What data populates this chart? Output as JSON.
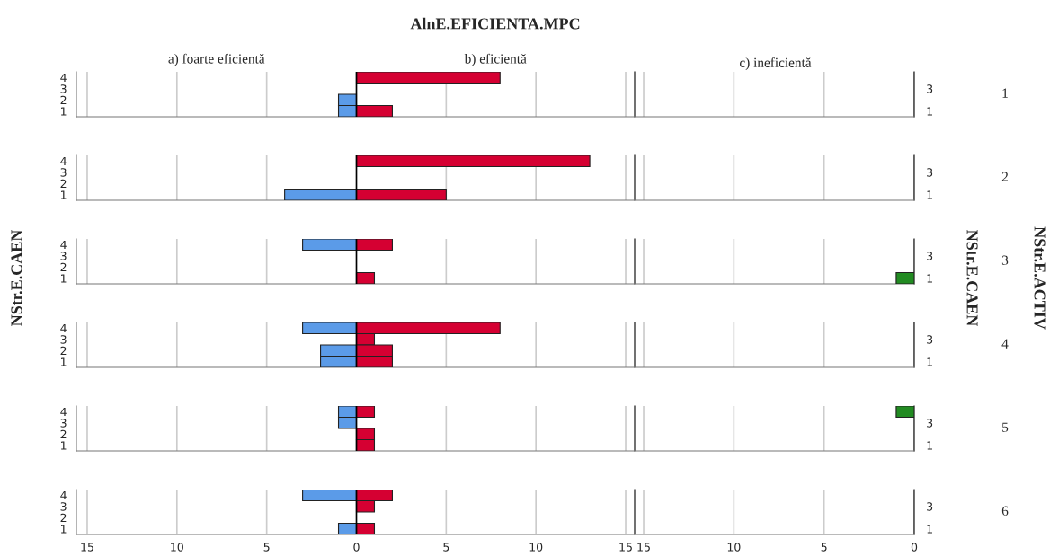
{
  "chart_data": [
    {
      "type": "bar",
      "orientation": "horizontal",
      "stacked": true,
      "title": "AlnE.EFICIENTA.MPC",
      "annotations": [
        "a) foarte eficientă",
        "b) eficientă"
      ],
      "categories": [
        "4",
        "3",
        "2",
        "1"
      ],
      "series": [
        {
          "color": "#5b9be8",
          "values": [
            null,
            null,
            -1,
            -1
          ]
        },
        {
          "color": "#d50032",
          "values": [
            8,
            null,
            null,
            2
          ]
        }
      ],
      "xlim": [
        -15.6,
        15.5
      ],
      "xticks": [
        {
          "value": -15,
          "label": null
        },
        {
          "value": -10,
          "label": null
        },
        {
          "value": -5,
          "label": null
        },
        0,
        5,
        10,
        15
      ],
      "ref_lines": [
        {
          "axis": "x",
          "value": 0,
          "color": "#000000"
        }
      ],
      "grid": "x",
      "tick_labels": "y"
    },
    {
      "type": "bar",
      "orientation": "horizontal",
      "subtitle": "c) ineficientă",
      "annotations": [
        "1"
      ],
      "categories": [
        null,
        "3",
        null,
        "1"
      ],
      "values": [
        null,
        null,
        null,
        null
      ],
      "xlim": [
        15.4,
        0
      ],
      "xticks": [
        15,
        10,
        5,
        0
      ],
      "grid": "x",
      "tick_labels": "y"
    },
    {
      "type": "bar",
      "orientation": "horizontal",
      "stacked": true,
      "categories": [
        "4",
        "3",
        "2",
        "1"
      ],
      "series": [
        {
          "color": "#5b9be8",
          "values": [
            null,
            null,
            null,
            -4
          ]
        },
        {
          "color": "#d50032",
          "values": [
            13,
            null,
            null,
            5
          ]
        }
      ],
      "xlim": [
        -15.6,
        15.5
      ],
      "xticks": [
        {
          "value": -15,
          "label": null
        },
        {
          "value": -10,
          "label": null
        },
        {
          "value": -5,
          "label": null
        },
        0,
        5,
        10,
        15
      ],
      "ref_lines": [
        {
          "axis": "x",
          "value": 0,
          "color": "#000000"
        }
      ],
      "grid": "x",
      "tick_labels": "y"
    },
    {
      "type": "bar",
      "orientation": "horizontal",
      "annotations": [
        "2"
      ],
      "categories": [
        null,
        "3",
        null,
        "1"
      ],
      "values": [
        null,
        null,
        null,
        null
      ],
      "xlim": [
        15.4,
        0
      ],
      "xticks": [
        15,
        10,
        5,
        0
      ],
      "grid": "x",
      "tick_labels": "y"
    },
    {
      "type": "bar",
      "orientation": "horizontal",
      "stacked": true,
      "ylabel": "NStr.E.CAEN",
      "categories": [
        "4",
        "3",
        "2",
        "1"
      ],
      "series": [
        {
          "color": "#5b9be8",
          "values": [
            -3,
            null,
            null,
            null
          ]
        },
        {
          "color": "#d50032",
          "values": [
            2,
            null,
            null,
            1
          ]
        }
      ],
      "xlim": [
        -15.6,
        15.5
      ],
      "xticks": [
        {
          "value": -15,
          "label": null
        },
        {
          "value": -10,
          "label": null
        },
        {
          "value": -5,
          "label": null
        },
        0,
        5,
        10,
        15
      ],
      "ref_lines": [
        {
          "axis": "x",
          "value": 0,
          "color": "#000000"
        }
      ],
      "grid": "x",
      "tick_labels": "y"
    },
    {
      "type": "bar",
      "orientation": "horizontal",
      "y2label": "NStr.E.CAEN",
      "annotations": [
        "3",
        "NStr.E.ACTIV"
      ],
      "categories": [
        null,
        "3",
        null,
        "1"
      ],
      "values": [
        null,
        null,
        null,
        1
      ],
      "color": "#228b22",
      "xlim": [
        15.4,
        0
      ],
      "xticks": [
        15,
        10,
        5,
        0
      ],
      "grid": "x",
      "tick_labels": "y"
    },
    {
      "type": "bar",
      "orientation": "horizontal",
      "stacked": true,
      "categories": [
        "4",
        "3",
        "2",
        "1"
      ],
      "series": [
        {
          "color": "#5b9be8",
          "values": [
            -3,
            null,
            -2,
            -2
          ]
        },
        {
          "color": "#d50032",
          "values": [
            8,
            1,
            2,
            2
          ]
        }
      ],
      "xlim": [
        -15.6,
        15.5
      ],
      "xticks": [
        {
          "value": -15,
          "label": null
        },
        {
          "value": -10,
          "label": null
        },
        {
          "value": -5,
          "label": null
        },
        0,
        5,
        10,
        15
      ],
      "ref_lines": [
        {
          "axis": "x",
          "value": 0,
          "color": "#000000"
        }
      ],
      "grid": "x",
      "tick_labels": "y"
    },
    {
      "type": "bar",
      "orientation": "horizontal",
      "annotations": [
        "4"
      ],
      "categories": [
        null,
        "3",
        null,
        "1"
      ],
      "values": [
        null,
        null,
        null,
        null
      ],
      "xlim": [
        15.4,
        0
      ],
      "xticks": [
        15,
        10,
        5,
        0
      ],
      "grid": "x",
      "tick_labels": "y"
    },
    {
      "type": "bar",
      "orientation": "horizontal",
      "stacked": true,
      "categories": [
        "4",
        "3",
        "2",
        "1"
      ],
      "series": [
        {
          "color": "#5b9be8",
          "values": [
            -1,
            -1,
            null,
            null
          ]
        },
        {
          "color": "#d50032",
          "values": [
            1,
            null,
            1,
            1
          ]
        }
      ],
      "xlim": [
        -15.6,
        15.5
      ],
      "xticks": [
        {
          "value": -15,
          "label": null
        },
        {
          "value": -10,
          "label": null
        },
        {
          "value": -5,
          "label": null
        },
        0,
        5,
        10,
        15
      ],
      "ref_lines": [
        {
          "axis": "x",
          "value": 0,
          "color": "#000000"
        }
      ],
      "grid": "x",
      "tick_labels": "y"
    },
    {
      "type": "bar",
      "orientation": "horizontal",
      "annotations": [
        "5"
      ],
      "categories": [
        null,
        "3",
        null,
        "1"
      ],
      "values": [
        1,
        null,
        null,
        null
      ],
      "color": "#228b22",
      "xlim": [
        15.4,
        0
      ],
      "xticks": [
        15,
        10,
        5,
        0
      ],
      "grid": "x",
      "tick_labels": "y"
    },
    {
      "type": "bar",
      "orientation": "horizontal",
      "stacked": true,
      "categories": [
        "4",
        "3",
        "2",
        "1"
      ],
      "series": [
        {
          "color": "#5b9be8",
          "values": [
            -3,
            null,
            null,
            -1
          ]
        },
        {
          "color": "#d50032",
          "values": [
            2,
            1,
            null,
            1
          ]
        }
      ],
      "xlim": [
        -15.6,
        15.5
      ],
      "xticks": [
        {
          "value": -15,
          "label": "15"
        },
        {
          "value": -10,
          "label": "10"
        },
        {
          "value": -5,
          "label": "5"
        },
        0,
        5,
        10,
        15
      ],
      "ref_lines": [
        {
          "axis": "x",
          "value": 0,
          "color": "#000000"
        }
      ],
      "grid": "x"
    },
    {
      "type": "bar",
      "orientation": "horizontal",
      "annotations": [
        "6"
      ],
      "categories": [
        null,
        "3",
        null,
        "1"
      ],
      "values": [
        null,
        null,
        null,
        null
      ],
      "xlim": [
        15.4,
        0
      ],
      "xticks": [
        15,
        10,
        5,
        0
      ],
      "grid": "x"
    }
  ]
}
